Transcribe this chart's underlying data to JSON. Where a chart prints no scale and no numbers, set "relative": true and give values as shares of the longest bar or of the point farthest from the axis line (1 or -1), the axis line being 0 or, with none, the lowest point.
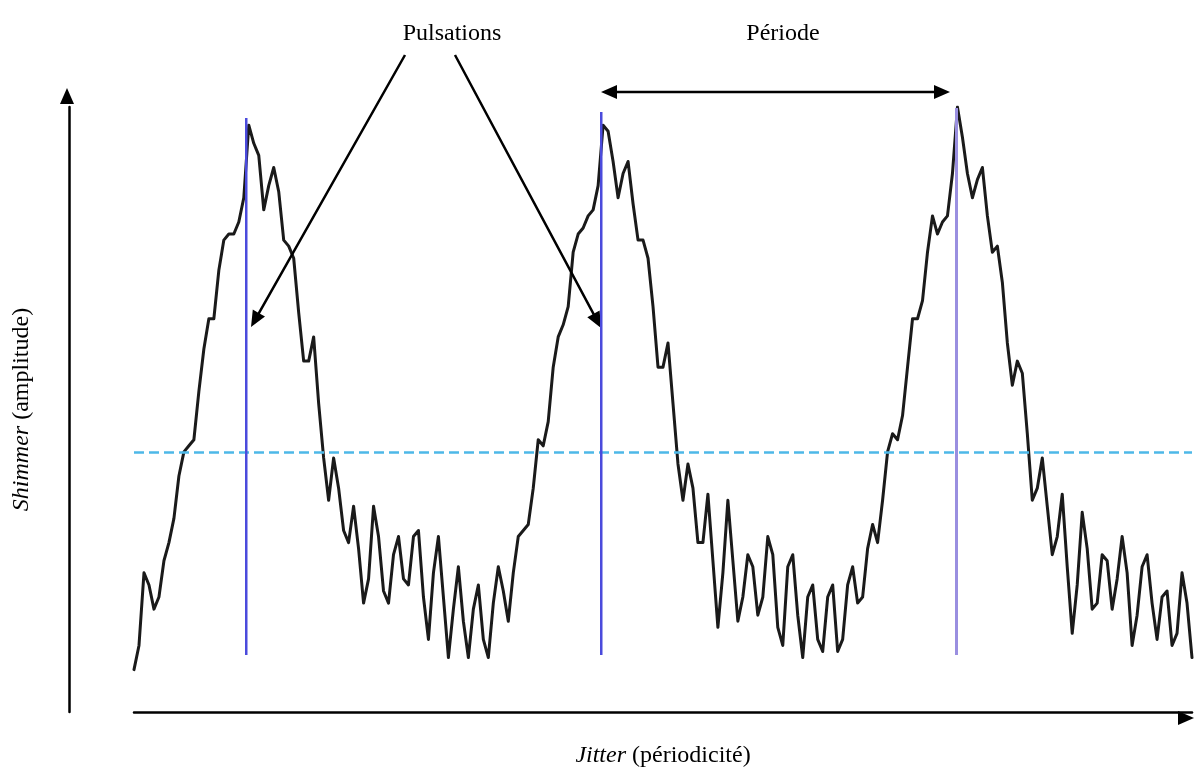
{
  "chart_data": {
    "type": "line",
    "relative": true,
    "xlabel": "Jitter (périodicité)",
    "ylabel": "Shimmer (amplitude)",
    "annotations": [
      "Pulsations",
      "Période"
    ],
    "tick_labels": false,
    "grid": false,
    "line_style": "solid",
    "categories": [
      null,
      null,
      null,
      null,
      null,
      null,
      null,
      null,
      null,
      null,
      null,
      null,
      null,
      null,
      null,
      null,
      null,
      null,
      null,
      null,
      null,
      null,
      null,
      null,
      null,
      null,
      null,
      null,
      null,
      null,
      null,
      null,
      null,
      null,
      null,
      null,
      null,
      null,
      null,
      null,
      null,
      null,
      null,
      null,
      null,
      null,
      null,
      null,
      null,
      null,
      null,
      null,
      null,
      null,
      null,
      null,
      null,
      null,
      null,
      null,
      null,
      null,
      null,
      null,
      null,
      null,
      null,
      null,
      null,
      null,
      null,
      null,
      null,
      null,
      null,
      null,
      null,
      null,
      null,
      null,
      null,
      null,
      null,
      null,
      null,
      null,
      null,
      null,
      null,
      null,
      null,
      null,
      null,
      null,
      null,
      null,
      null,
      null,
      null,
      null,
      null,
      null,
      null,
      null,
      null,
      null,
      null,
      null,
      null,
      null,
      null,
      null,
      null,
      null,
      null,
      null,
      null,
      null,
      null,
      null,
      null,
      null,
      null,
      null,
      null,
      null,
      null,
      null,
      null,
      null,
      null,
      null,
      null,
      null,
      null,
      null,
      null,
      null,
      null,
      null,
      null,
      null,
      null,
      null,
      null,
      null,
      null,
      null,
      null,
      null,
      null,
      null,
      null,
      null,
      null,
      null,
      null,
      null,
      null,
      null,
      null,
      null,
      null,
      null,
      null,
      null,
      null,
      null,
      null,
      null,
      null,
      null,
      null,
      null,
      null,
      null,
      null,
      null,
      null,
      null,
      null,
      null,
      null,
      null,
      null,
      null,
      null,
      null,
      null,
      null,
      null,
      null,
      null,
      null,
      null,
      null,
      null,
      null,
      null,
      null,
      null,
      null,
      null,
      null,
      null,
      null,
      null,
      null,
      null,
      null,
      null,
      null,
      null
    ],
    "series": [
      {
        "color": "#1a1a1a",
        "values": [
          0.07,
          0.11,
          0.23,
          0.21,
          0.17,
          0.19,
          0.25,
          0.28,
          0.32,
          0.39,
          0.43,
          0.44,
          0.45,
          0.53,
          0.6,
          0.65,
          0.65,
          0.73,
          0.78,
          0.79,
          0.79,
          0.81,
          0.85,
          0.97,
          0.94,
          0.92,
          0.83,
          0.87,
          0.9,
          0.86,
          0.78,
          0.77,
          0.75,
          0.66,
          0.58,
          0.58,
          0.62,
          0.51,
          0.42,
          0.35,
          0.42,
          0.37,
          0.3,
          0.28,
          0.34,
          0.27,
          0.18,
          0.22,
          0.34,
          0.29,
          0.2,
          0.18,
          0.26,
          0.29,
          0.22,
          0.21,
          0.29,
          0.3,
          0.19,
          0.12,
          0.23,
          0.29,
          0.19,
          0.09,
          0.17,
          0.24,
          0.15,
          0.09,
          0.17,
          0.21,
          0.12,
          0.09,
          0.18,
          0.24,
          0.2,
          0.15,
          0.23,
          0.29,
          0.3,
          0.31,
          0.37,
          0.45,
          0.44,
          0.48,
          0.57,
          0.62,
          0.64,
          0.67,
          0.76,
          0.79,
          0.8,
          0.82,
          0.83,
          0.87,
          0.97,
          0.96,
          0.91,
          0.85,
          0.89,
          0.91,
          0.84,
          0.78,
          0.78,
          0.75,
          0.67,
          0.57,
          0.57,
          0.61,
          0.51,
          0.41,
          0.35,
          0.41,
          0.37,
          0.28,
          0.28,
          0.36,
          0.25,
          0.14,
          0.23,
          0.35,
          0.25,
          0.15,
          0.19,
          0.26,
          0.24,
          0.16,
          0.19,
          0.29,
          0.26,
          0.14,
          0.11,
          0.24,
          0.26,
          0.16,
          0.09,
          0.19,
          0.21,
          0.12,
          0.1,
          0.19,
          0.21,
          0.1,
          0.12,
          0.21,
          0.24,
          0.18,
          0.19,
          0.27,
          0.31,
          0.28,
          0.35,
          0.43,
          0.46,
          0.45,
          0.49,
          0.57,
          0.65,
          0.65,
          0.68,
          0.76,
          0.82,
          0.79,
          0.81,
          0.82,
          0.89,
          1,
          0.95,
          0.89,
          0.85,
          0.88,
          0.9,
          0.82,
          0.76,
          0.77,
          0.71,
          0.61,
          0.54,
          0.58,
          0.56,
          0.46,
          0.35,
          0.37,
          0.42,
          0.34,
          0.26,
          0.29,
          0.36,
          0.24,
          0.13,
          0.21,
          0.33,
          0.27,
          0.17,
          0.18,
          0.26,
          0.25,
          0.17,
          0.22,
          0.29,
          0.23,
          0.11,
          0.16,
          0.24,
          0.26,
          0.18,
          0.12,
          0.19,
          0.2,
          0.11,
          0.13,
          0.23,
          0.18,
          0.09
        ]
      }
    ],
    "ref_lines": [
      {
        "axis": "y",
        "value": 0.43,
        "color": "#4db8e8",
        "line_style": "dashed"
      }
    ]
  }
}
